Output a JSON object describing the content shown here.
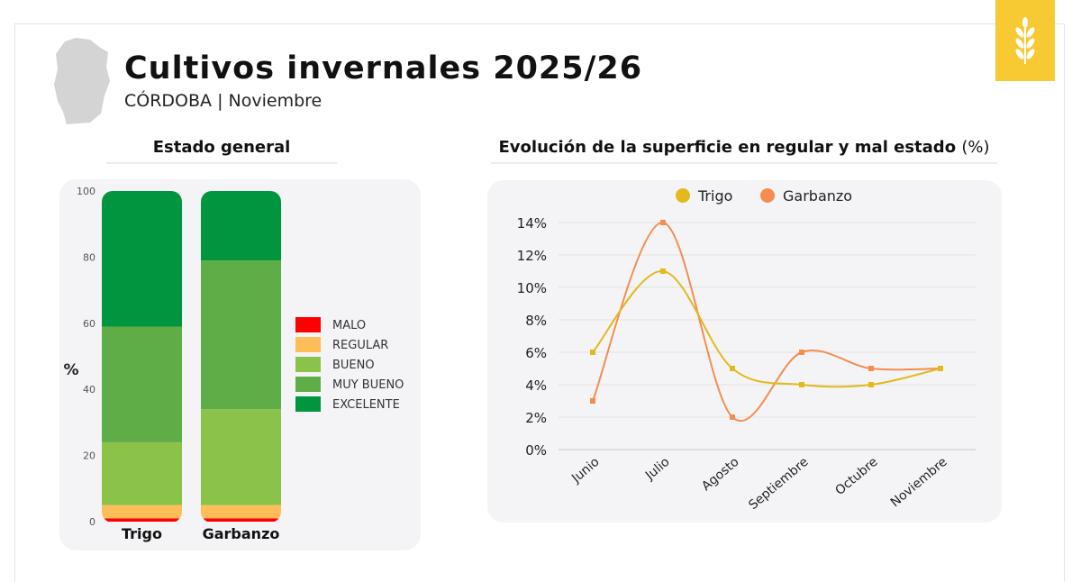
{
  "header": {
    "title": "Cultivos invernales 2025/26",
    "subtitle": "CÓRDOBA | Noviembre",
    "province_icon": "cordoba-map-icon",
    "logo_icon": "wheat-icon",
    "logo_color": "#f7c933"
  },
  "left_section": {
    "title": "Estado general"
  },
  "right_section": {
    "title": "Evolución de la superficie en regular y mal estado",
    "title_unit": "(%)"
  },
  "chart_data": [
    {
      "type": "bar",
      "stacked": true,
      "categories": [
        "Trigo",
        "Garbanzo"
      ],
      "ylabel": "%",
      "ylim": [
        0,
        100
      ],
      "yticks": [
        0,
        20,
        40,
        60,
        80,
        100
      ],
      "legend_position": "right",
      "series": [
        {
          "name": "MALO",
          "color": "#ff0000",
          "values": [
            1,
            1
          ]
        },
        {
          "name": "REGULAR",
          "color": "#ffbd59",
          "values": [
            4,
            4
          ]
        },
        {
          "name": "BUENO",
          "color": "#8bc34a",
          "values": [
            19,
            29
          ]
        },
        {
          "name": "MUY BUENO",
          "color": "#5fad46",
          "values": [
            35,
            45
          ]
        },
        {
          "name": "EXCELENTE",
          "color": "#00963f",
          "values": [
            41,
            21
          ]
        }
      ]
    },
    {
      "type": "line",
      "smooth": true,
      "categories": [
        "Junio",
        "Julio",
        "Agosto",
        "Septiembre",
        "Octubre",
        "Noviembre"
      ],
      "ylim": [
        0,
        14
      ],
      "yticks": [
        "0%",
        "2%",
        "4%",
        "6%",
        "8%",
        "10%",
        "12%",
        "14%"
      ],
      "legend_position": "top",
      "grid": true,
      "series": [
        {
          "name": "Trigo",
          "color": "#e3b91c",
          "values": [
            6,
            11,
            5,
            4,
            4,
            5
          ]
        },
        {
          "name": "Garbanzo",
          "color": "#f58d4f",
          "values": [
            3,
            14,
            2,
            6,
            5,
            5
          ]
        }
      ]
    }
  ]
}
